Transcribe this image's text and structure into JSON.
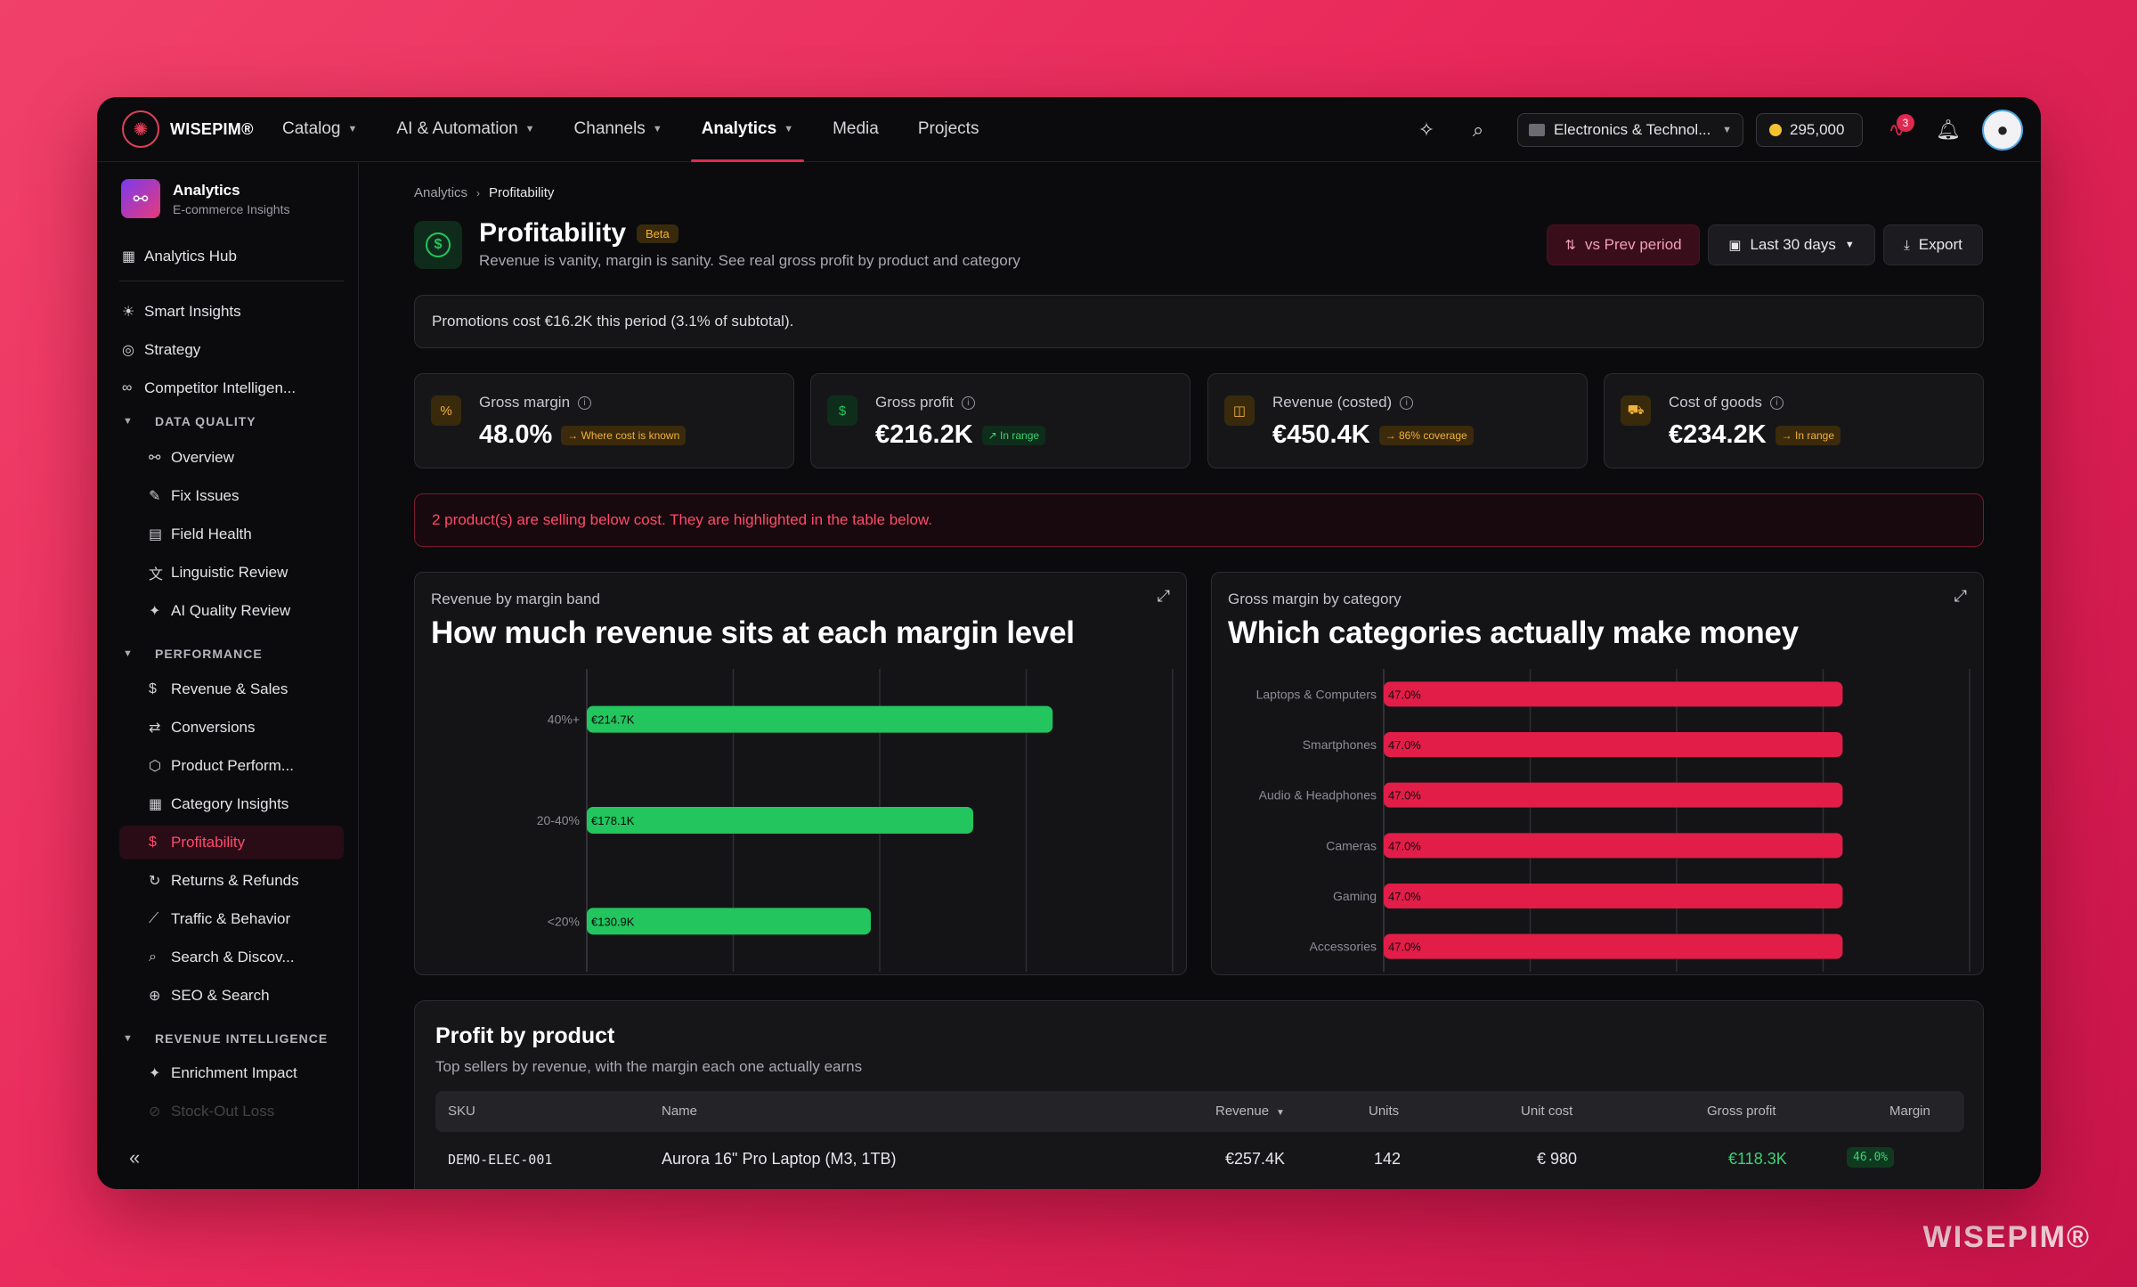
{
  "watermark": "WISEPIM®",
  "brand": {
    "name": "WISEPIM®"
  },
  "nav": [
    {
      "label": "Catalog",
      "dropdown": true
    },
    {
      "label": "AI & Automation",
      "dropdown": true
    },
    {
      "label": "Channels",
      "dropdown": true
    },
    {
      "label": "Analytics",
      "dropdown": true,
      "active": true
    },
    {
      "label": "Media",
      "dropdown": false
    },
    {
      "label": "Projects",
      "dropdown": false
    }
  ],
  "topright": {
    "store": "Electronics & Technol...",
    "credits": "295,000",
    "alerts_count": "3",
    "icons": [
      "sparkle-icon",
      "search-icon",
      "pulse-icon",
      "bell-icon",
      "user-icon"
    ]
  },
  "sidebar": {
    "title": "Analytics",
    "subtitle": "E-commerce Insights",
    "hub": "Analytics Hub",
    "top_items": [
      "Smart Insights",
      "Strategy",
      "Competitor Intelligen..."
    ],
    "sections": [
      {
        "label": "DATA QUALITY",
        "items": [
          "Overview",
          "Fix Issues",
          "Field Health",
          "Linguistic Review",
          "AI Quality Review"
        ]
      },
      {
        "label": "PERFORMANCE",
        "items": [
          "Revenue & Sales",
          "Conversions",
          "Product Perform...",
          "Category Insights",
          "Profitability",
          "Returns & Refunds",
          "Traffic & Behavior",
          "Search & Discov...",
          "SEO & Search"
        ]
      },
      {
        "label": "REVENUE INTELLIGENCE",
        "items": [
          "Enrichment Impact",
          "Stock-Out Loss"
        ]
      }
    ],
    "active_item": "Profitability"
  },
  "breadcrumb": [
    "Analytics",
    "Profitability"
  ],
  "page": {
    "title": "Profitability",
    "badge": "Beta",
    "subtitle": "Revenue is vanity, margin is sanity. See real gross profit by product and category",
    "vs_button": "vs Prev period",
    "range_button": "Last 30 days",
    "export_button": "Export"
  },
  "promo_notice": "Promotions cost €16.2K this period (3.1% of subtotal).",
  "kpis": [
    {
      "label": "Gross margin",
      "value": "48.0%",
      "chip": "→ Where cost is known",
      "chip_color": "amber",
      "icon": "percent-icon"
    },
    {
      "label": "Gross profit",
      "value": "€216.2K",
      "chip": "↗ In range",
      "chip_color": "green",
      "icon": "dollar-icon"
    },
    {
      "label": "Revenue (costed)",
      "value": "€450.4K",
      "chip": "→ 86% coverage",
      "chip_color": "amber",
      "icon": "coins-icon"
    },
    {
      "label": "Cost of goods",
      "value": "€234.2K",
      "chip": "→ In range",
      "chip_color": "amber",
      "icon": "truck-icon"
    }
  ],
  "alert": "2 product(s) are selling below cost. They are highlighted in the table below.",
  "chart_data": [
    {
      "type": "bar",
      "orientation": "horizontal",
      "kicker": "Revenue by margin band",
      "title": "How much revenue sits at each margin level",
      "categories": [
        "40%+",
        "20-40%",
        "<20%"
      ],
      "values": [
        214.7,
        178.1,
        130.9
      ],
      "labels": [
        "€214.7K",
        "€178.1K",
        "€130.9K"
      ],
      "unit": "€K",
      "xlim": [
        0,
        270
      ],
      "grid": true,
      "color": "#22c55e"
    },
    {
      "type": "bar",
      "orientation": "horizontal",
      "kicker": "Gross margin by category",
      "title": "Which categories actually make money",
      "categories": [
        "Laptops & Computers",
        "Smartphones",
        "Audio & Headphones",
        "Cameras",
        "Gaming",
        "Accessories"
      ],
      "values": [
        47.0,
        47.0,
        47.0,
        47.0,
        47.0,
        47.0
      ],
      "labels": [
        "47.0%",
        "47.0%",
        "47.0%",
        "47.0%",
        "47.0%",
        "47.0%"
      ],
      "unit": "%",
      "xlim": [
        0,
        60
      ],
      "grid": true,
      "color": "#e11d48"
    }
  ],
  "table": {
    "title": "Profit by product",
    "subtitle": "Top sellers by revenue, with the margin each one actually earns",
    "columns": [
      "SKU",
      "Name",
      "Revenue",
      "Units",
      "Unit cost",
      "Gross profit",
      "Margin"
    ],
    "sort_column": "Revenue",
    "rows": [
      {
        "sku": "DEMO-ELEC-001",
        "name": "Aurora 16\" Pro Laptop (M3, 1TB)",
        "revenue": "€257.4K",
        "units": "142",
        "unit_cost": "€ 980",
        "gross_profit": "€118.3K",
        "margin": "46.0%"
      }
    ]
  }
}
